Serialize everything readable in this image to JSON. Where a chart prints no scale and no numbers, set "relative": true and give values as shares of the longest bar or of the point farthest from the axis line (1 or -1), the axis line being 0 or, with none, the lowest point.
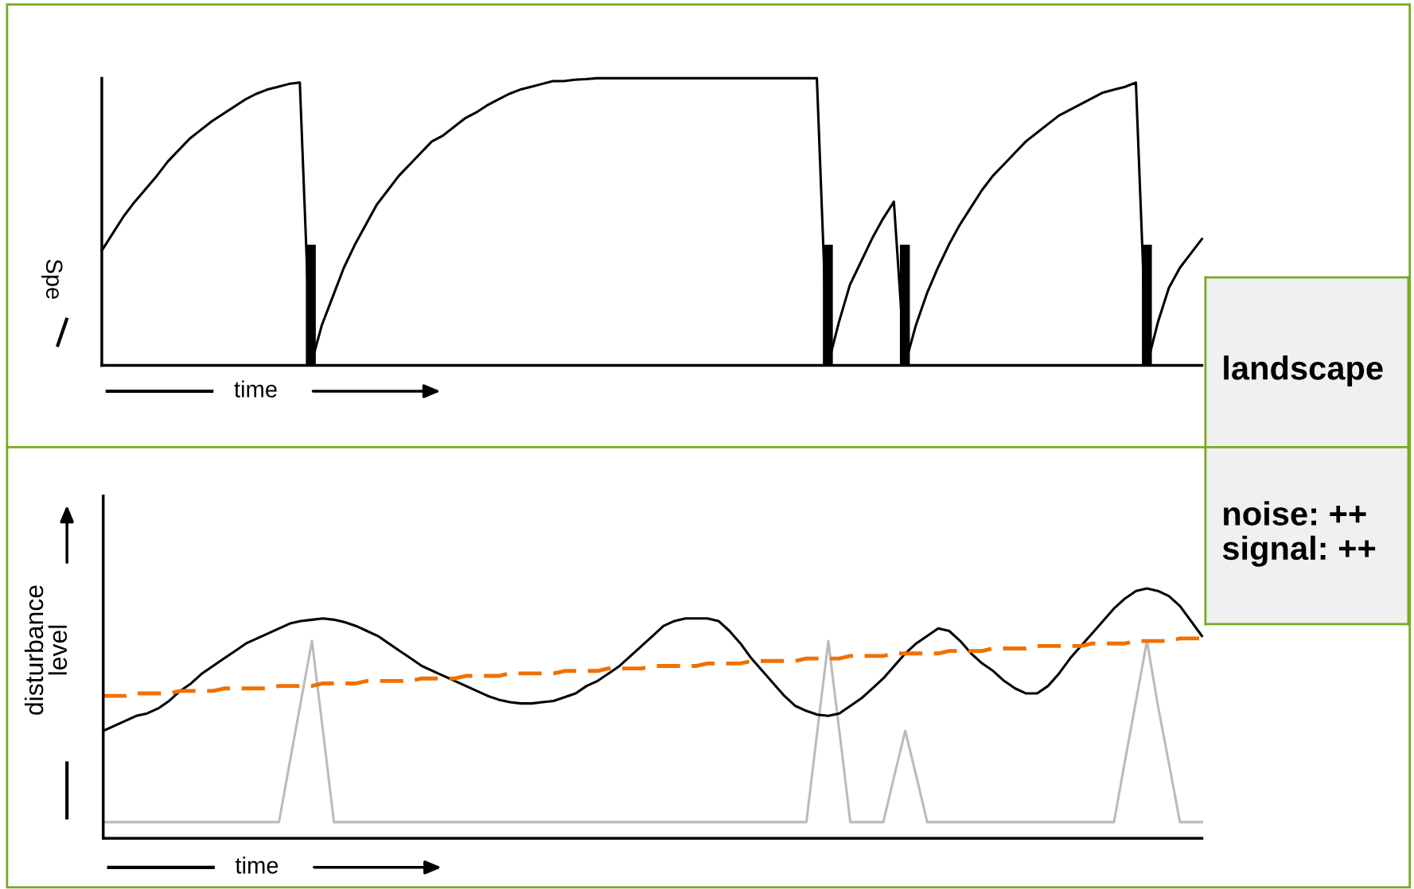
{
  "chart_data": [
    {
      "type": "line",
      "relative": true,
      "xlabel": "time",
      "ylabel": "Spe",
      "categories": [
        null,
        null,
        null,
        null,
        null,
        null,
        null,
        null,
        null,
        null,
        null,
        null,
        null,
        null,
        null,
        null,
        null,
        null,
        null,
        null,
        null,
        null,
        null,
        null,
        null,
        null,
        null,
        null,
        null,
        null,
        null,
        null,
        null,
        null,
        null,
        null,
        null,
        null,
        null,
        null,
        null,
        null,
        null,
        null,
        null,
        null,
        null,
        null,
        null,
        null,
        null,
        null,
        null,
        null,
        null,
        null,
        null,
        null,
        null,
        null,
        null,
        null,
        null,
        null,
        null,
        null,
        null,
        null,
        null,
        null,
        null,
        null,
        null,
        null,
        null,
        null,
        null,
        null,
        null,
        null,
        null,
        null,
        null,
        null,
        null,
        null,
        null,
        null,
        null,
        null,
        null,
        null,
        null,
        null,
        null,
        null,
        null,
        null,
        null,
        null,
        null
      ],
      "series": [
        {
          "color": "#000000",
          "values": [
            0.4,
            0.46,
            0.52,
            0.57,
            0.615,
            0.66,
            0.71,
            0.75,
            0.79,
            0.82,
            0.85,
            0.875,
            0.9,
            0.925,
            0.945,
            0.96,
            0.97,
            0.98,
            0.985,
            0,
            0.14,
            0.24,
            0.34,
            0.42,
            0.49,
            0.56,
            0.61,
            0.66,
            0.7,
            0.74,
            0.78,
            0.8,
            0.83,
            0.86,
            0.88,
            0.905,
            0.925,
            0.945,
            0.96,
            0.97,
            0.98,
            0.99,
            0.99,
            0.995,
            0.997,
            1,
            1,
            1,
            1,
            1,
            1,
            1,
            1,
            1,
            1,
            1,
            1,
            1,
            1,
            1,
            1,
            1,
            1,
            1,
            1,
            1,
            0,
            0.15,
            0.28,
            0.36,
            0.44,
            0.51,
            0.57,
            0,
            0.14,
            0.25,
            0.34,
            0.42,
            0.49,
            0.55,
            0.61,
            0.66,
            0.7,
            0.74,
            0.78,
            0.81,
            0.84,
            0.87,
            0.89,
            0.91,
            0.93,
            0.95,
            0.96,
            0.97,
            0.985,
            0,
            0.15,
            0.27,
            0.34,
            0.39,
            0.44
          ]
        }
      ]
    },
    {
      "type": "line",
      "relative": true,
      "xlabel": "time",
      "ylabel": "disturbance\nlevel",
      "categories": [
        null,
        null,
        null,
        null,
        null,
        null,
        null,
        null,
        null,
        null,
        null,
        null,
        null,
        null,
        null,
        null,
        null,
        null,
        null,
        null,
        null,
        null,
        null,
        null,
        null,
        null,
        null,
        null,
        null,
        null,
        null,
        null,
        null,
        null,
        null,
        null,
        null,
        null,
        null,
        null,
        null,
        null,
        null,
        null,
        null,
        null,
        null,
        null,
        null,
        null,
        null,
        null,
        null,
        null,
        null,
        null,
        null,
        null,
        null,
        null,
        null,
        null,
        null,
        null,
        null,
        null,
        null,
        null,
        null,
        null,
        null,
        null,
        null,
        null,
        null,
        null,
        null,
        null,
        null,
        null,
        null,
        null,
        null,
        null,
        null,
        null,
        null,
        null,
        null,
        null,
        null,
        null,
        null,
        null,
        null,
        null,
        null,
        null,
        null,
        null,
        null
      ],
      "series": [
        {
          "color": "#bbbbbb",
          "values": [
            0.065,
            0.065,
            0.065,
            0.065,
            0.065,
            0.065,
            0.065,
            0.065,
            0.065,
            0.065,
            0.065,
            0.065,
            0.065,
            0.065,
            0.065,
            0.065,
            0.065,
            0.31,
            0.55,
            0.79,
            0.43,
            0.065,
            0.065,
            0.065,
            0.065,
            0.065,
            0.065,
            0.065,
            0.065,
            0.065,
            0.065,
            0.065,
            0.065,
            0.065,
            0.065,
            0.065,
            0.065,
            0.065,
            0.065,
            0.065,
            0.065,
            0.065,
            0.065,
            0.065,
            0.065,
            0.065,
            0.065,
            0.065,
            0.065,
            0.065,
            0.065,
            0.065,
            0.065,
            0.065,
            0.065,
            0.065,
            0.065,
            0.065,
            0.065,
            0.065,
            0.065,
            0.065,
            0.065,
            0.065,
            0.065,
            0.43,
            0.79,
            0.43,
            0.065,
            0.065,
            0.065,
            0.065,
            0.25,
            0.43,
            0.25,
            0.065,
            0.065,
            0.065,
            0.065,
            0.065,
            0.065,
            0.065,
            0.065,
            0.065,
            0.065,
            0.065,
            0.065,
            0.065,
            0.065,
            0.065,
            0.065,
            0.065,
            0.065,
            0.31,
            0.55,
            0.79,
            0.53,
            0.3,
            0.065,
            0.065,
            0.065
          ]
        },
        {
          "color": "#000000",
          "values": [
            0.43,
            0.45,
            0.47,
            0.49,
            0.5,
            0.52,
            0.55,
            0.59,
            0.62,
            0.66,
            0.69,
            0.72,
            0.75,
            0.78,
            0.8,
            0.82,
            0.84,
            0.86,
            0.87,
            0.875,
            0.88,
            0.875,
            0.865,
            0.85,
            0.83,
            0.81,
            0.78,
            0.75,
            0.72,
            0.69,
            0.67,
            0.65,
            0.63,
            0.61,
            0.59,
            0.57,
            0.555,
            0.545,
            0.54,
            0.54,
            0.545,
            0.55,
            0.565,
            0.58,
            0.61,
            0.63,
            0.66,
            0.69,
            0.73,
            0.77,
            0.81,
            0.85,
            0.87,
            0.88,
            0.88,
            0.88,
            0.87,
            0.83,
            0.78,
            0.72,
            0.67,
            0.62,
            0.57,
            0.53,
            0.51,
            0.495,
            0.49,
            0.5,
            0.53,
            0.56,
            0.6,
            0.64,
            0.69,
            0.74,
            0.78,
            0.81,
            0.84,
            0.83,
            0.79,
            0.74,
            0.7,
            0.67,
            0.63,
            0.6,
            0.58,
            0.58,
            0.61,
            0.66,
            0.72,
            0.77,
            0.82,
            0.87,
            0.92,
            0.96,
            0.99,
            1.0,
            0.99,
            0.97,
            0.93,
            0.87,
            0.81
          ]
        },
        {
          "color": "#f07000",
          "line_style": "dashed",
          "values": [
            0.57,
            0.57,
            0.57,
            0.58,
            0.58,
            0.58,
            0.58,
            0.59,
            0.59,
            0.59,
            0.59,
            0.6,
            0.6,
            0.6,
            0.6,
            0.6,
            0.61,
            0.61,
            0.61,
            0.61,
            0.62,
            0.62,
            0.62,
            0.62,
            0.63,
            0.63,
            0.63,
            0.63,
            0.63,
            0.64,
            0.64,
            0.64,
            0.64,
            0.65,
            0.65,
            0.65,
            0.65,
            0.66,
            0.66,
            0.66,
            0.66,
            0.66,
            0.67,
            0.67,
            0.67,
            0.67,
            0.68,
            0.68,
            0.68,
            0.68,
            0.69,
            0.69,
            0.69,
            0.69,
            0.69,
            0.7,
            0.7,
            0.7,
            0.7,
            0.71,
            0.71,
            0.71,
            0.71,
            0.71,
            0.72,
            0.72,
            0.72,
            0.72,
            0.73,
            0.73,
            0.73,
            0.73,
            0.74,
            0.74,
            0.74,
            0.74,
            0.74,
            0.75,
            0.75,
            0.75,
            0.75,
            0.76,
            0.76,
            0.76,
            0.76,
            0.77,
            0.77,
            0.77,
            0.77,
            0.77,
            0.78,
            0.78,
            0.78,
            0.78,
            0.79,
            0.79,
            0.79,
            0.79,
            0.8,
            0.8,
            0.8
          ]
        }
      ]
    },
    {
      "type": "other",
      "annotations": [
        "landscape",
        "noise: ++\nsignal: ++"
      ]
    }
  ]
}
